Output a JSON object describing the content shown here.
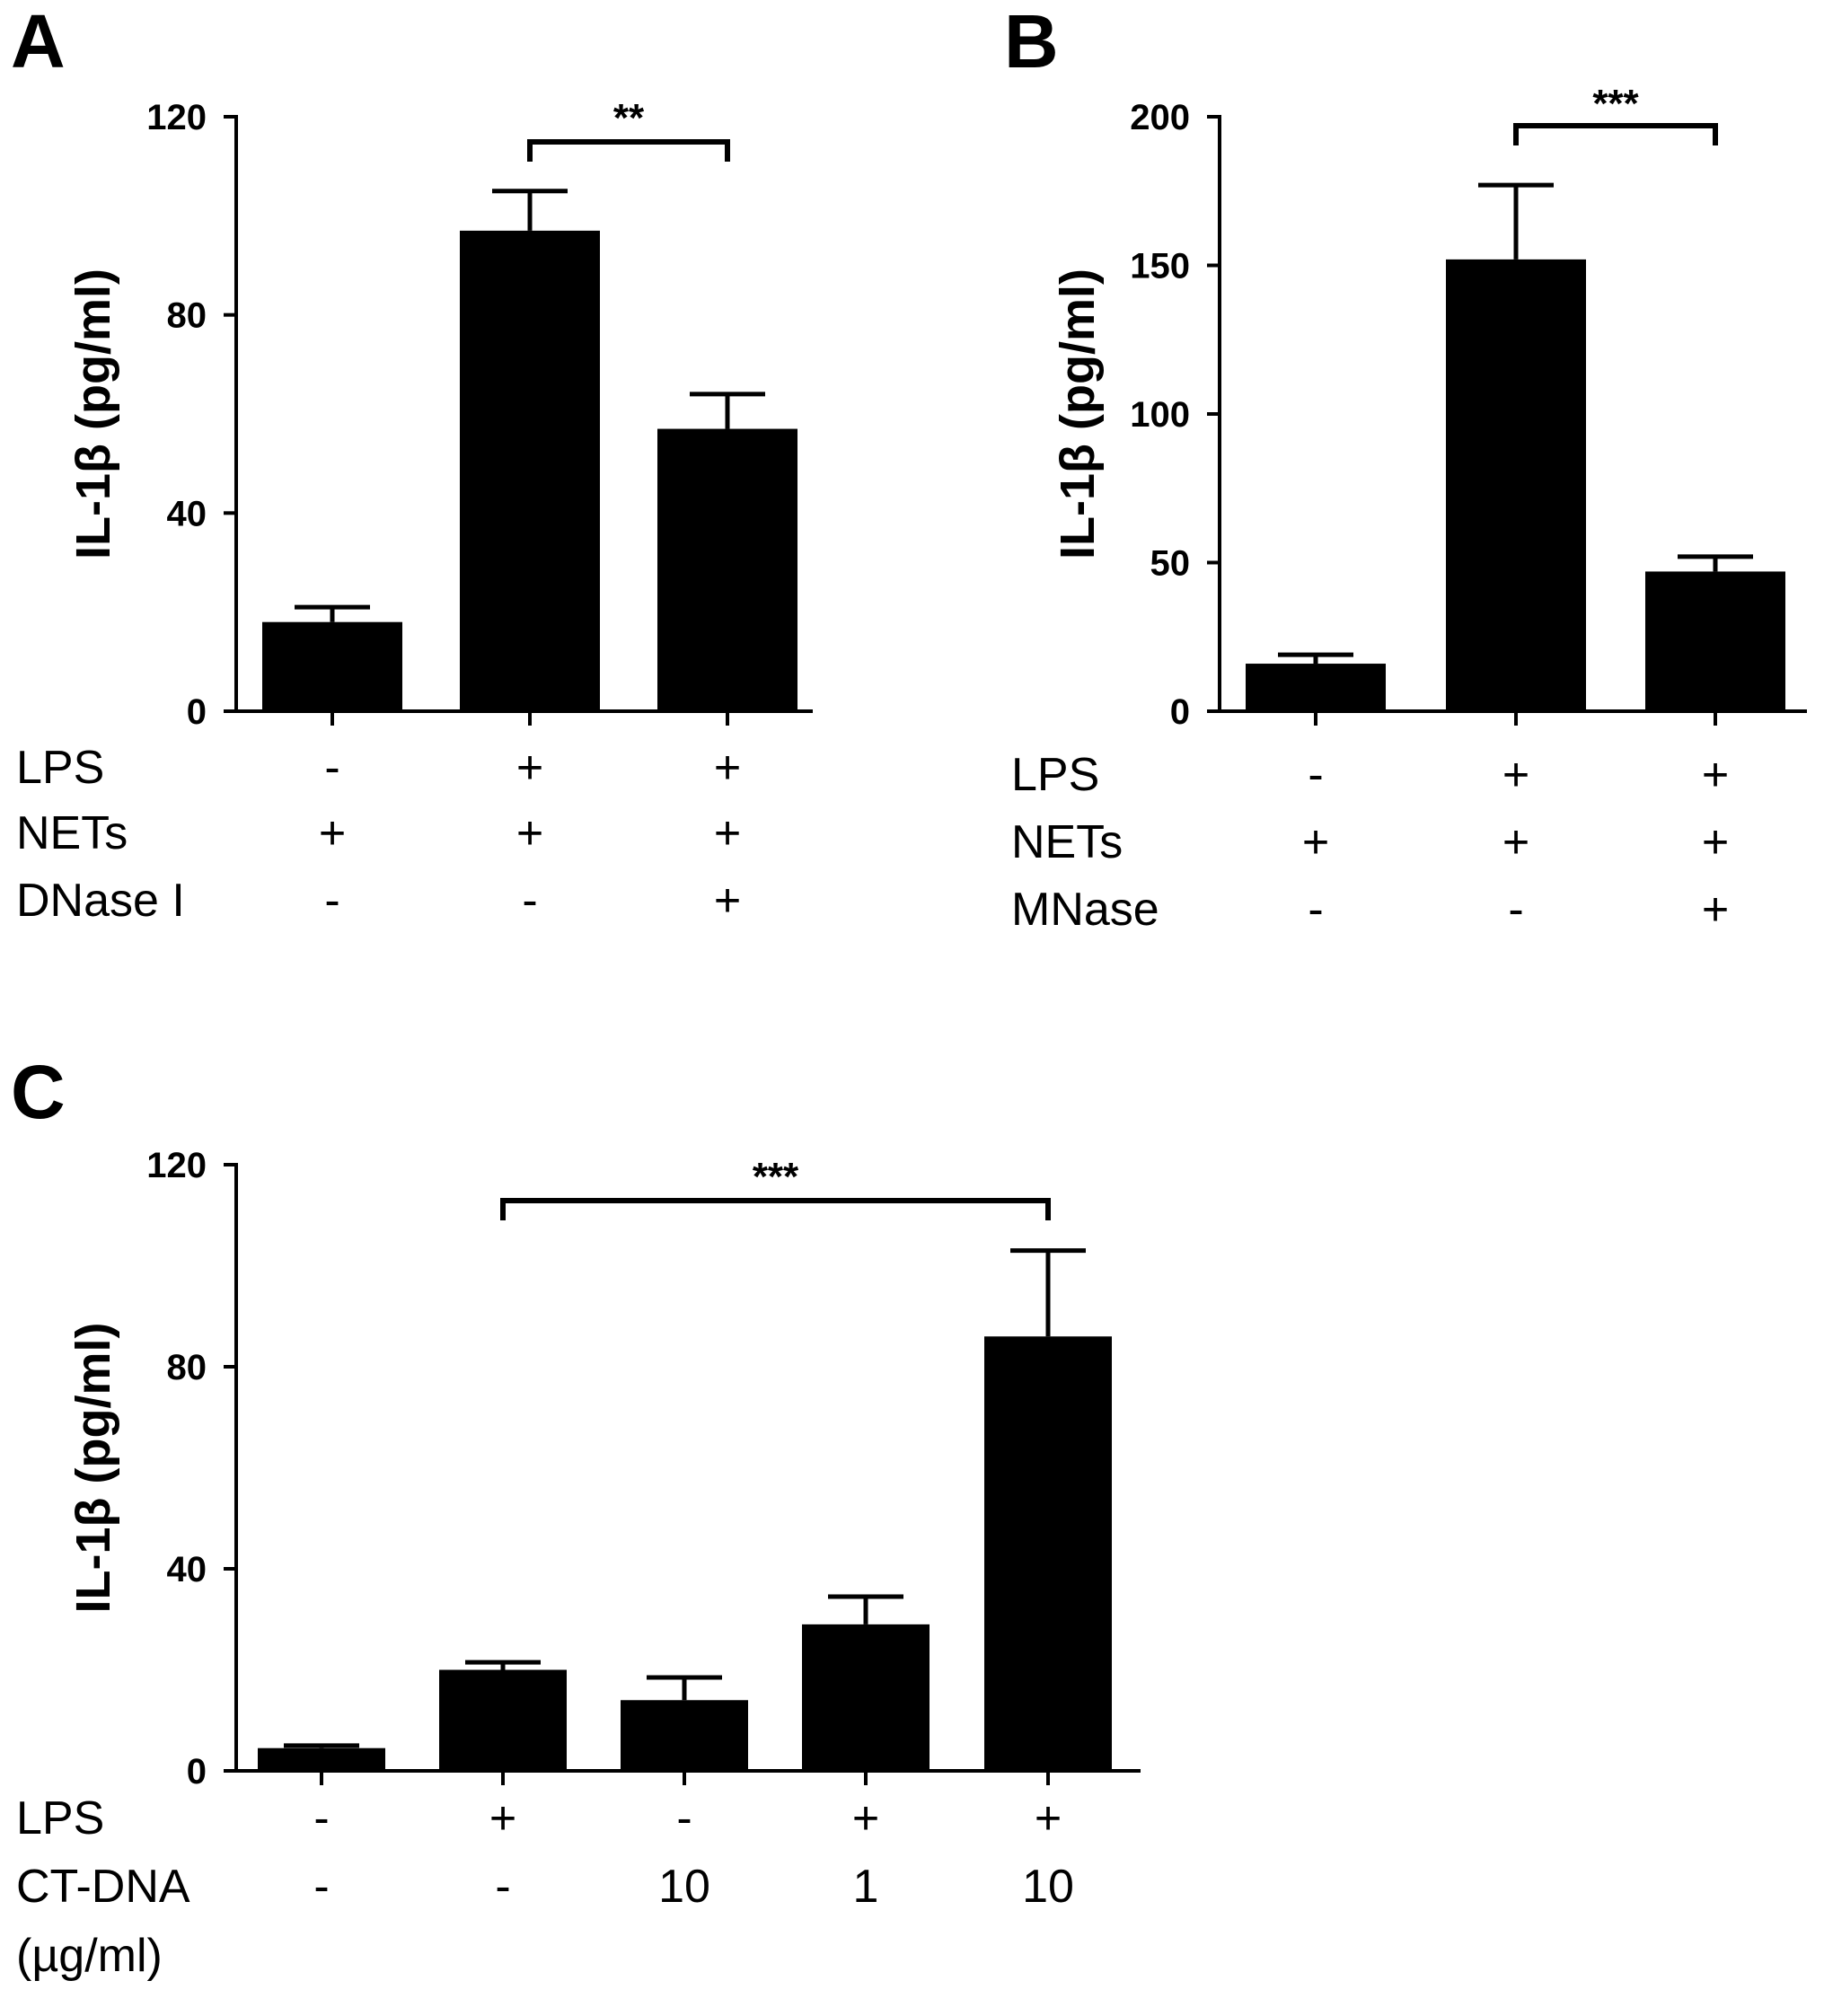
{
  "chart_data": [
    {
      "type": "bar",
      "panel": "A",
      "ylabel": "IL-1β (pg/ml)",
      "ylim": [
        0,
        120
      ],
      "yticks": [
        "0",
        "40",
        "80",
        "120"
      ],
      "values": [
        18,
        97,
        57
      ],
      "errors": [
        3,
        8,
        7
      ],
      "conditions": [
        {
          "label": "LPS",
          "values": [
            "-",
            "+",
            "+"
          ]
        },
        {
          "label": "NETs",
          "values": [
            "+",
            "+",
            "+"
          ]
        },
        {
          "label": "DNase I",
          "values": [
            "-",
            "-",
            "+"
          ]
        }
      ],
      "significance": [
        {
          "from": 1,
          "to": 2,
          "label": "**"
        }
      ]
    },
    {
      "type": "bar",
      "panel": "B",
      "ylabel": "IL-1β (pg/ml)",
      "ylim": [
        0,
        200
      ],
      "yticks": [
        "0",
        "50",
        "100",
        "150",
        "200"
      ],
      "values": [
        16,
        152,
        47
      ],
      "errors": [
        3,
        25,
        5
      ],
      "conditions": [
        {
          "label": "LPS",
          "values": [
            "-",
            "+",
            "+"
          ]
        },
        {
          "label": "NETs",
          "values": [
            "+",
            "+",
            "+"
          ]
        },
        {
          "label": "MNase",
          "values": [
            "-",
            "-",
            "+"
          ]
        }
      ],
      "significance": [
        {
          "from": 1,
          "to": 2,
          "label": "***"
        }
      ]
    },
    {
      "type": "bar",
      "panel": "C",
      "ylabel": "IL-1β (pg/ml)",
      "ylim": [
        0,
        120
      ],
      "yticks": [
        "0",
        "40",
        "80",
        "120"
      ],
      "values": [
        4.5,
        20,
        14,
        29,
        86
      ],
      "errors": [
        0.5,
        1.5,
        4.5,
        5.5,
        17
      ],
      "conditions": [
        {
          "label": "LPS",
          "values": [
            "-",
            "+",
            "-",
            "+",
            "+"
          ]
        },
        {
          "label": "CT-DNA",
          "values": [
            "-",
            "-",
            "10",
            "1",
            "10"
          ]
        },
        {
          "label": "(µg/ml)",
          "values": []
        }
      ],
      "significance": [
        {
          "from": 1,
          "to": 4,
          "label": "***"
        }
      ]
    }
  ]
}
